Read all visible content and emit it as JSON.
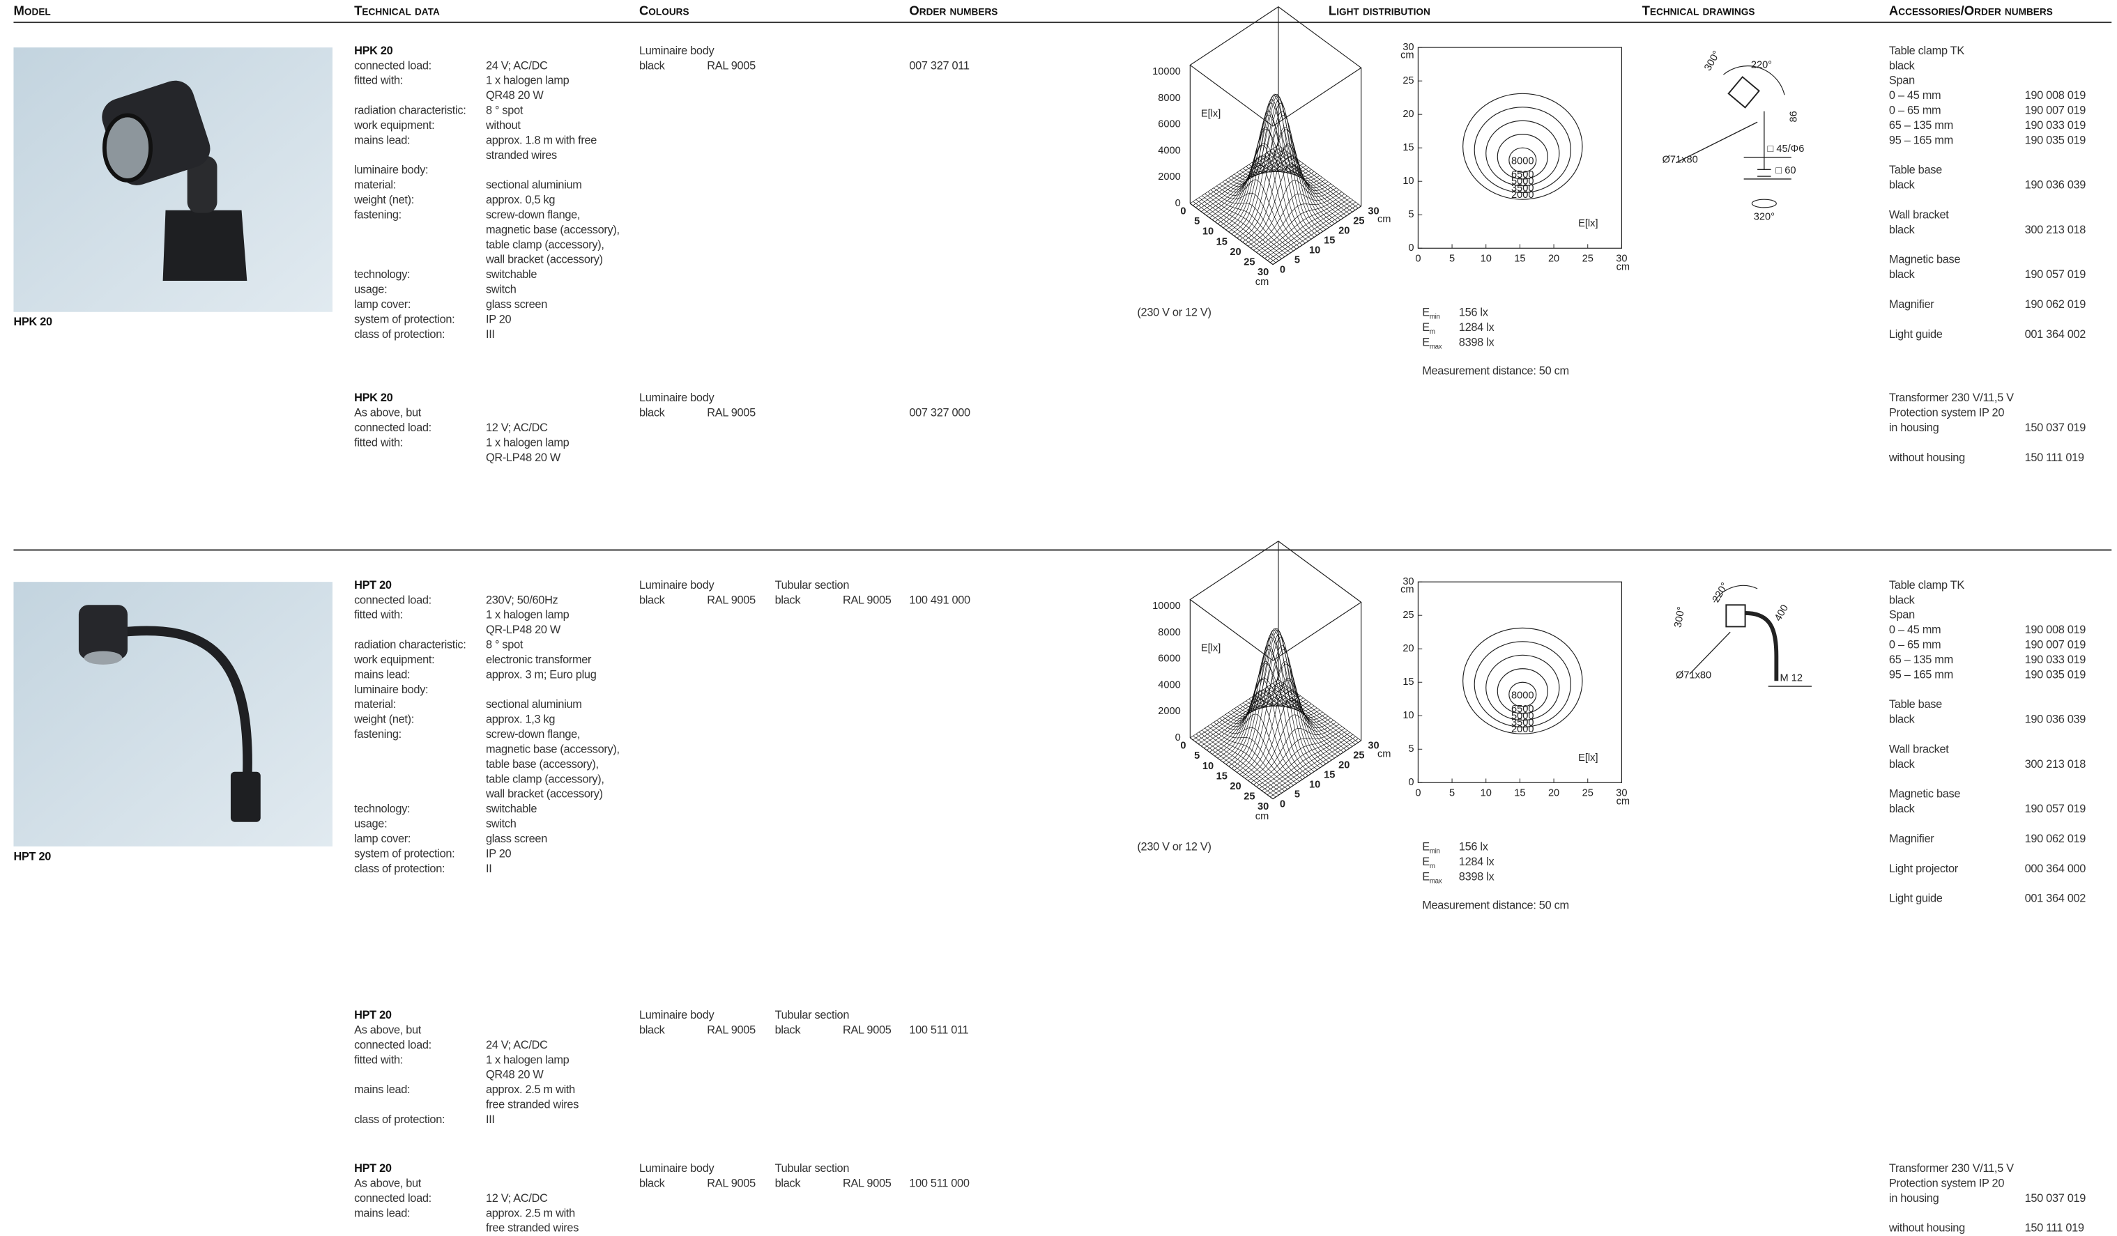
{
  "header": {
    "columns": [
      "Model",
      "Technical data",
      "Colours",
      "Order numbers",
      "Light distribution",
      "Technical drawings",
      "Accessories/Order numbers"
    ]
  },
  "diagram": {
    "surface": {
      "z_ticks": [
        0,
        2000,
        4000,
        6000,
        8000,
        10000
      ],
      "axis_ticks": [
        0,
        5,
        10,
        15,
        20,
        25,
        30
      ],
      "unit": "cm",
      "quantity": "E[lx]"
    },
    "contour": {
      "ticks": [
        0,
        5,
        10,
        15,
        20,
        25,
        30
      ],
      "unit": "cm",
      "levels": [
        8000,
        6500,
        5000,
        3500,
        2000
      ],
      "quantity": "E[lx]"
    }
  },
  "sections": [
    {
      "model": "HPK 20",
      "light": {
        "caption": "(230 V or 12 V)",
        "values": [
          {
            "symbol": "E",
            "sub": "min",
            "value": "156 lx"
          },
          {
            "symbol": "E",
            "sub": "m",
            "value": "1284 lx"
          },
          {
            "symbol": "E",
            "sub": "max",
            "value": "8398 lx"
          }
        ],
        "note": "Measurement distance: 50 cm"
      },
      "drawing_labels": [
        "300°",
        "220°",
        "86",
        "□ 45/Φ6",
        "□ 60",
        "Ø71x80",
        "320°"
      ],
      "entries": [
        {
          "title": "HPK 20",
          "lines": [
            [
              "connected load:",
              "24 V; AC/DC"
            ],
            [
              "fitted with:",
              "1 x halogen lamp"
            ],
            [
              null,
              "QR48 20 W"
            ],
            [
              "radiation characteristic:",
              "8 ° spot"
            ],
            [
              "work equipment:",
              "without"
            ],
            [
              "mains lead:",
              "approx. 1.8 m with free"
            ],
            [
              null,
              "stranded wires"
            ],
            [
              "luminaire body:",
              null
            ],
            [
              "material:",
              "sectional aluminium"
            ],
            [
              "weight (net):",
              "approx. 0,5 kg"
            ],
            [
              "fastening:",
              "screw-down flange,"
            ],
            [
              null,
              "magnetic base (accessory),"
            ],
            [
              null,
              "table clamp (accessory),"
            ],
            [
              null,
              "wall bracket (accessory)"
            ],
            [
              "technology:",
              "switchable"
            ],
            [
              "usage:",
              "switch"
            ],
            [
              "lamp cover:",
              "glass screen"
            ],
            [
              "system of protection:",
              "IP 20"
            ],
            [
              "class of protection:",
              "III"
            ]
          ],
          "colours": [
            {
              "heading": "Luminaire body",
              "name": "black",
              "code": "RAL 9005"
            }
          ],
          "order": "007 327 011",
          "accessories": [
            [
              [
                "Table clamp TK",
                null
              ],
              [
                "black",
                null
              ],
              [
                "Span",
                null
              ],
              [
                "0 –  45 mm",
                "190 008 019"
              ],
              [
                "0 –  65 mm",
                "190 007 019"
              ],
              [
                "65 – 135 mm",
                "190 033 019"
              ],
              [
                "95 – 165 mm",
                "190 035 019"
              ]
            ],
            [
              [
                "Table base",
                null
              ],
              [
                "black",
                "190 036 039"
              ]
            ],
            [
              [
                "Wall bracket",
                null
              ],
              [
                "black",
                "300 213 018"
              ]
            ],
            [
              [
                "Magnetic base",
                null
              ],
              [
                "black",
                "190 057 019"
              ]
            ],
            [
              [
                "Magnifier",
                "190 062 019"
              ]
            ],
            [
              [
                "Light guide",
                "001 364 002"
              ]
            ]
          ]
        },
        {
          "title": "HPK 20",
          "lines": [
            [
              "As above, but",
              null
            ],
            [
              "connected load:",
              "12 V; AC/DC"
            ],
            [
              "fitted with:",
              "1 x halogen lamp"
            ],
            [
              null,
              "QR-LP48 20 W"
            ]
          ],
          "colours": [
            {
              "heading": "Luminaire body",
              "name": "black",
              "code": "RAL 9005"
            }
          ],
          "order": "007 327 000",
          "accessories": [
            [
              [
                "Transformer 230 V/11,5 V",
                null
              ],
              [
                "Protection system IP 20",
                null
              ],
              [
                "in housing",
                "150 037 019"
              ]
            ],
            [
              [
                "without housing",
                "150 111 019"
              ]
            ]
          ]
        }
      ]
    },
    {
      "model": "HPT 20",
      "light": {
        "caption": "(230 V or 12 V)",
        "values": [
          {
            "symbol": "E",
            "sub": "min",
            "value": "156 lx"
          },
          {
            "symbol": "E",
            "sub": "m",
            "value": "1284 lx"
          },
          {
            "symbol": "E",
            "sub": "max",
            "value": "8398 lx"
          }
        ],
        "note": "Measurement distance: 50 cm"
      },
      "drawing_labels": [
        "300°",
        "220°",
        "400",
        "Ø71x80",
        "M 12"
      ],
      "entries": [
        {
          "title": "HPT 20",
          "lines": [
            [
              "connected load:",
              "230V; 50/60Hz"
            ],
            [
              "fitted with:",
              "1 x halogen lamp"
            ],
            [
              null,
              "QR-LP48 20 W"
            ],
            [
              "radiation characteristic:",
              "8 ° spot"
            ],
            [
              "work equipment:",
              "electronic transformer"
            ],
            [
              "mains lead:",
              "approx. 3 m; Euro plug"
            ],
            [
              "luminaire body:",
              null
            ],
            [
              "material:",
              "sectional aluminium"
            ],
            [
              "weight (net):",
              "approx. 1,3 kg"
            ],
            [
              "fastening:",
              "screw-down flange,"
            ],
            [
              null,
              "magnetic base (accessory),"
            ],
            [
              null,
              "table base (accessory),"
            ],
            [
              null,
              "table clamp (accessory),"
            ],
            [
              null,
              "wall bracket (accessory)"
            ],
            [
              "technology:",
              "switchable"
            ],
            [
              "usage:",
              "switch"
            ],
            [
              "lamp cover:",
              "glass screen"
            ],
            [
              "system of protection:",
              "IP 20"
            ],
            [
              "class of protection:",
              "II"
            ]
          ],
          "colours": [
            {
              "heading": "Luminaire body",
              "name": "black",
              "code": "RAL 9005"
            },
            {
              "heading": "Tubular section",
              "name": "black",
              "code": "RAL 9005"
            }
          ],
          "order": "100 491 000",
          "accessories": [
            [
              [
                "Table clamp TK",
                null
              ],
              [
                "black",
                null
              ],
              [
                "Span",
                null
              ],
              [
                "0 –  45 mm",
                "190 008 019"
              ],
              [
                "0 –  65 mm",
                "190 007 019"
              ],
              [
                "65 – 135 mm",
                "190 033 019"
              ],
              [
                "95 – 165 mm",
                "190 035 019"
              ]
            ],
            [
              [
                "Table base",
                null
              ],
              [
                "black",
                "190 036 039"
              ]
            ],
            [
              [
                "Wall bracket",
                null
              ],
              [
                "black",
                "300 213 018"
              ]
            ],
            [
              [
                "Magnetic base",
                null
              ],
              [
                "black",
                "190 057 019"
              ]
            ],
            [
              [
                "Magnifier",
                "190 062 019"
              ]
            ],
            [
              [
                "Light projector",
                "000 364 000"
              ]
            ],
            [
              [
                "Light guide",
                "001 364 002"
              ]
            ]
          ]
        },
        {
          "title": "HPT 20",
          "lines": [
            [
              "As above, but",
              null
            ],
            [
              "connected load:",
              "24 V; AC/DC"
            ],
            [
              "fitted with:",
              "1 x halogen lamp"
            ],
            [
              null,
              "QR48 20 W"
            ],
            [
              "mains lead:",
              "approx. 2.5 m with"
            ],
            [
              null,
              "free stranded wires"
            ],
            [
              "class of protection:",
              "III"
            ]
          ],
          "colours": [
            {
              "heading": "Luminaire body",
              "name": "black",
              "code": "RAL 9005"
            },
            {
              "heading": "Tubular section",
              "name": "black",
              "code": "RAL 9005"
            }
          ],
          "order": "100 511 011"
        },
        {
          "title": "HPT 20",
          "lines": [
            [
              "As above, but",
              null
            ],
            [
              "connected load:",
              "12 V; AC/DC"
            ],
            [
              "mains lead:",
              "approx. 2.5 m with"
            ],
            [
              null,
              "free stranded wires"
            ]
          ],
          "colours": [
            {
              "heading": "Luminaire body",
              "name": "black",
              "code": "RAL 9005"
            },
            {
              "heading": "Tubular section",
              "name": "black",
              "code": "RAL 9005"
            }
          ],
          "order": "100 511 000",
          "accessories": [
            [
              [
                "Transformer 230 V/11,5 V",
                null
              ],
              [
                "Protection system IP 20",
                null
              ],
              [
                "in housing",
                "150 037 019"
              ]
            ],
            [
              [
                "without housing",
                "150 111 019"
              ]
            ]
          ]
        }
      ]
    }
  ]
}
